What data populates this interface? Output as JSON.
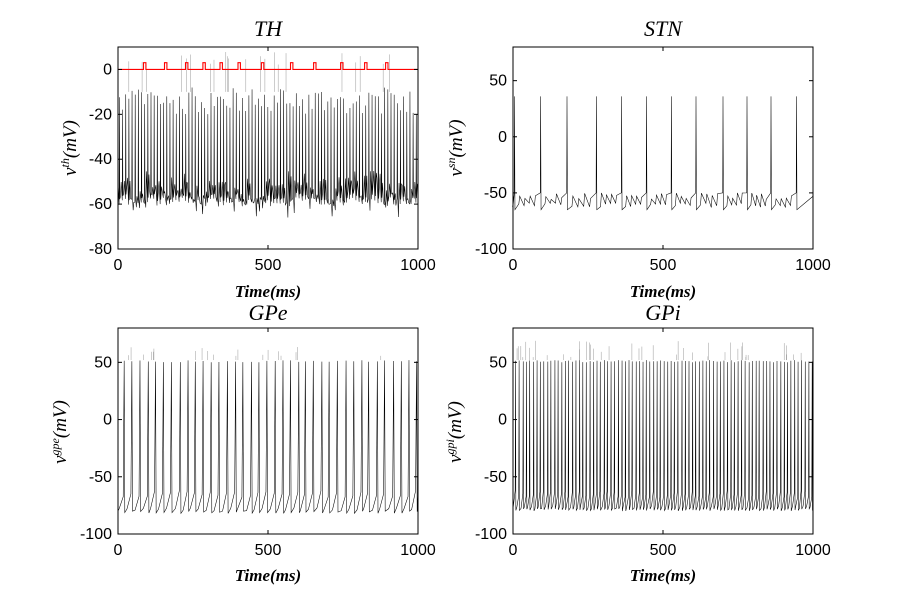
{
  "chart_data": [
    {
      "type": "line",
      "id": "th",
      "title": "TH",
      "xlabel": "Time(ms)",
      "ylabel_base": "v",
      "ylabel_sup": "th",
      "ylabel_unit": "(mV)",
      "xlim": [
        0,
        1000
      ],
      "ylim": [
        -80,
        10
      ],
      "xticks": [
        0,
        500,
        1000
      ],
      "yticks": [
        -80,
        -60,
        -40,
        -20,
        0
      ],
      "grid": false,
      "series": [
        {
          "name": "v_th",
          "color": "#000000",
          "baseline_range": [
            -61,
            -45
          ],
          "spike_range": [
            -20,
            -8
          ],
          "spike_count": 95,
          "overshoot_max": 8
        },
        {
          "name": "stimulus",
          "color": "#ff0000",
          "level": 0,
          "pulse_height": 3,
          "pulse_times": [
            85,
            155,
            225,
            283,
            340,
            400,
            478,
            575,
            652,
            742,
            822,
            892
          ]
        }
      ]
    },
    {
      "type": "line",
      "id": "stn",
      "title": "STN",
      "xlabel": "Time(ms)",
      "ylabel_base": "v",
      "ylabel_sup": "sn",
      "ylabel_unit": "(mV)",
      "xlim": [
        0,
        1000
      ],
      "ylim": [
        -100,
        80
      ],
      "xticks": [
        0,
        500,
        1000
      ],
      "yticks": [
        -100,
        -50,
        0,
        50
      ],
      "grid": false,
      "series": [
        {
          "name": "v_sn",
          "color": "#000000",
          "trough": -63,
          "rebound": -50,
          "spike_times": [
            5,
            92,
            180,
            278,
            362,
            445,
            528,
            610,
            700,
            780,
            860,
            945
          ],
          "spike_peak": 36
        }
      ]
    },
    {
      "type": "line",
      "id": "gpe",
      "title": "GPe",
      "xlabel": "Time(ms)",
      "ylabel_base": "v",
      "ylabel_sup": "gpe",
      "ylabel_unit": "(mV)",
      "xlim": [
        0,
        1000
      ],
      "ylim": [
        -100,
        80
      ],
      "xticks": [
        0,
        500,
        1000
      ],
      "yticks": [
        -100,
        -50,
        0,
        50
      ],
      "grid": false,
      "series": [
        {
          "name": "v_gpe",
          "color": "#000000",
          "trough": -80,
          "rebound": -62,
          "spike_count": 38,
          "spike_peak": 52,
          "overshoot_max": 64
        }
      ]
    },
    {
      "type": "line",
      "id": "gpi",
      "title": "GPi",
      "xlabel": "Time(ms)",
      "ylabel_base": "v",
      "ylabel_sup": "gpi",
      "ylabel_unit": "(mV)",
      "xlim": [
        0,
        1000
      ],
      "ylim": [
        -100,
        80
      ],
      "xticks": [
        0,
        500,
        1000
      ],
      "yticks": [
        -100,
        -50,
        0,
        50
      ],
      "grid": false,
      "series": [
        {
          "name": "v_gpi",
          "color": "#000000",
          "trough": -78,
          "rebound": -62,
          "spike_count": 85,
          "spike_peak": 52,
          "overshoot_max": 70
        }
      ]
    }
  ]
}
